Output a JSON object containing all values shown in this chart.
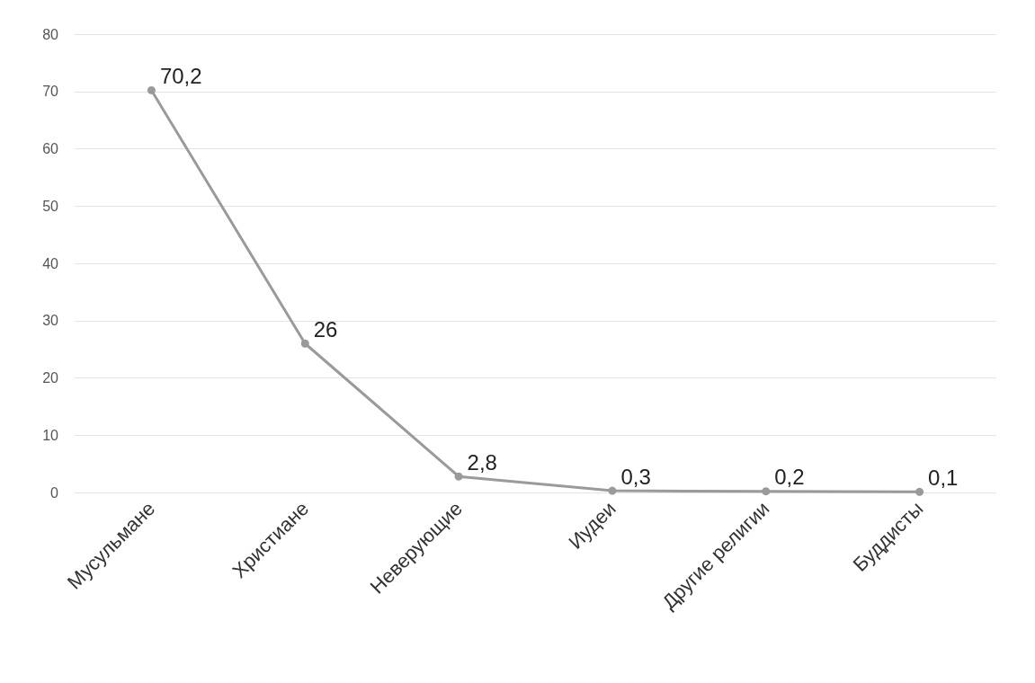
{
  "chart_data": {
    "type": "line",
    "categories": [
      "Мусульмане",
      "Христиане",
      "Неверующие",
      "Иудеи",
      "Другие религии",
      "Буддисты"
    ],
    "series": [
      {
        "color": "#9a9a9a",
        "values": [
          70.2,
          26,
          2.8,
          0.3,
          0.2,
          0.1
        ],
        "value_labels": [
          "70,2",
          "26",
          "2,8",
          "0,3",
          "0,2",
          "0,1"
        ]
      }
    ],
    "ylim": [
      0,
      80
    ],
    "yticks": [
      0,
      10,
      20,
      30,
      40,
      50,
      60,
      70,
      80
    ],
    "grid": "y",
    "marker": "circle",
    "line_style": "solid"
  }
}
